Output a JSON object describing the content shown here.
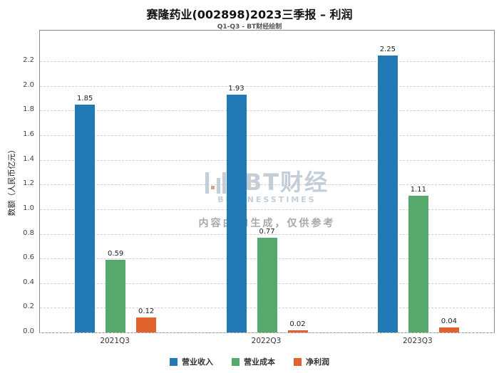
{
  "chart_data": {
    "type": "bar",
    "title": "赛隆药业(002898)2023三季报 – 利润",
    "subtitle": "Q1-Q3 - BT财经绘制",
    "ylabel": "数额（人民币亿元）",
    "categories": [
      "2021Q3",
      "2022Q3",
      "2023Q3"
    ],
    "series": [
      {
        "name": "营业收入",
        "color": "#2179b5",
        "values": [
          1.85,
          1.93,
          2.25
        ]
      },
      {
        "name": "营业成本",
        "color": "#55a96d",
        "values": [
          0.59,
          0.77,
          1.11
        ]
      },
      {
        "name": "净利润",
        "color": "#e1622d",
        "values": [
          0.12,
          0.02,
          0.04
        ]
      }
    ],
    "ylim": [
      0,
      2.45
    ],
    "yticks": [
      0.0,
      0.2,
      0.4,
      0.6,
      0.8,
      1.0,
      1.2,
      1.4,
      1.6,
      1.8,
      2.0,
      2.2
    ],
    "grid": "dashed-horizontal",
    "legend_position": "bottom"
  },
  "watermark": {
    "logo_text": "BT财经",
    "logo_subtext": "BUSINESSTIMES",
    "disclaimer": "内容由AI生成，仅供参考"
  }
}
